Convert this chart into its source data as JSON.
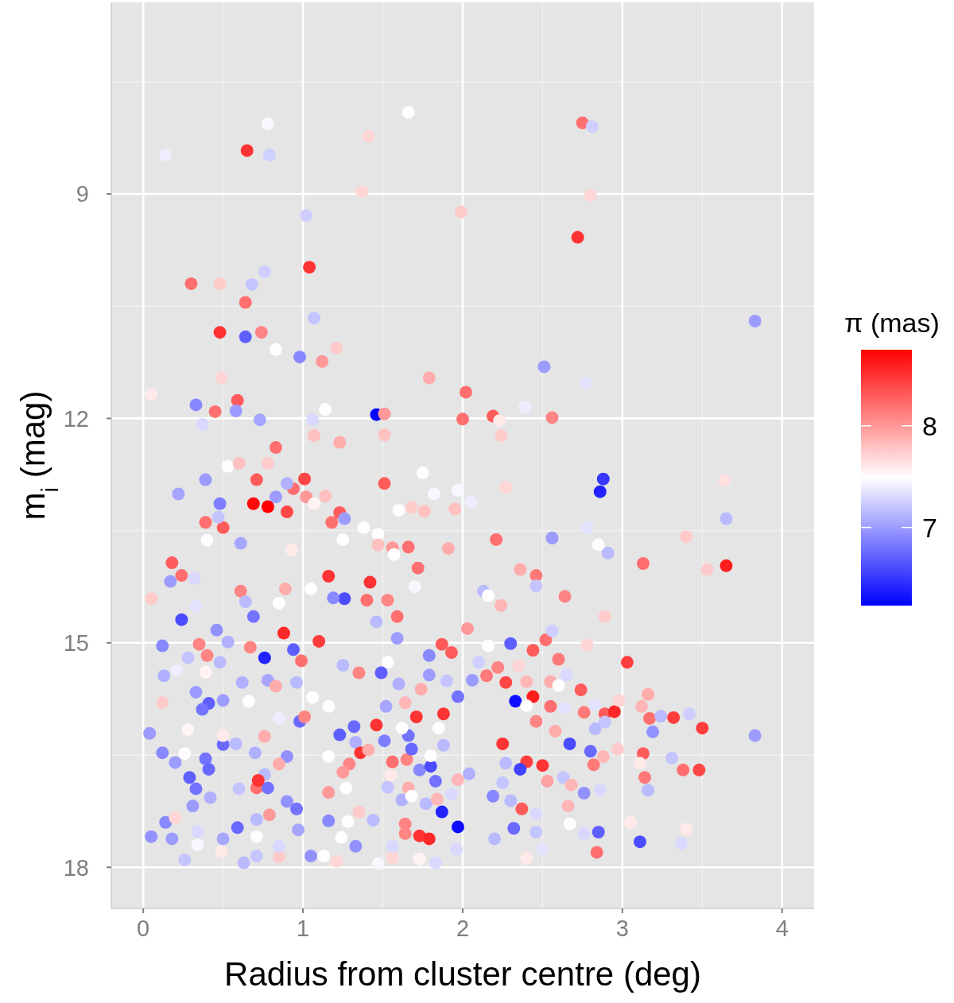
{
  "chart_data": {
    "type": "scatter",
    "xlabel": "Radius from cluster centre (deg)",
    "ylabel": "m$_{i}$ (mag)",
    "clabel": "π (mas)",
    "xlim": [
      -0.2,
      4.2
    ],
    "xticks": [
      0,
      1,
      2,
      3,
      4
    ],
    "ylim": [
      18.55,
      6.44
    ],
    "yticks": [
      9,
      12,
      15,
      18
    ],
    "clim": [
      6.23,
      8.75
    ],
    "cticks": [
      7,
      8
    ],
    "grid": true,
    "marker": "circle",
    "x": [
      0.14,
      0.65,
      0.78,
      0.79,
      1.66,
      1.41,
      1.37,
      1.02,
      1.99,
      2.75,
      2.81,
      2.8,
      2.72,
      1.04,
      0.3,
      0.48,
      0.68,
      0.76,
      0.64,
      1.07,
      0.48,
      0.64,
      0.74,
      0.83,
      0.98,
      1.12,
      1.21,
      3.83,
      2.51,
      0.05,
      0.49,
      0.33,
      0.45,
      0.59,
      0.58,
      1.79,
      2.02,
      1.46,
      1.14,
      1.51,
      2.19,
      2.23,
      2.39,
      2.56,
      2.77,
      0.73,
      1.06,
      2.0,
      0.37,
      1.07,
      1.23,
      1.51,
      0.83,
      0.53,
      0.6,
      0.78,
      0.39,
      0.71,
      1.01,
      1.51,
      1.75,
      0.22,
      0.48,
      0.69,
      0.78,
      0.83,
      0.9,
      0.94,
      0.9,
      1.02,
      1.07,
      1.14,
      1.23,
      1.26,
      1.18,
      1.6,
      1.68,
      1.76,
      1.82,
      1.97,
      2.05,
      1.95,
      0.39,
      0.5,
      0.47,
      0.4,
      0.61,
      0.93,
      1.38,
      1.47,
      1.25,
      1.47,
      1.56,
      1.66,
      1.91,
      1.57,
      1.72,
      0.18,
      0.24,
      0.17,
      0.32,
      1.16,
      1.42,
      0.61,
      0.89,
      1.05,
      1.26,
      1.19,
      1.4,
      1.53,
      1.7,
      0.05,
      0.24,
      0.33,
      0.69,
      0.64,
      0.85,
      0.88,
      1.1,
      0.46,
      0.53,
      1.59,
      1.59,
      1.46,
      2.03,
      1.87,
      2.24,
      2.88,
      2.86,
      3.64,
      3.65,
      2.27,
      2.21,
      2.56,
      2.78,
      2.85,
      2.91,
      3.4,
      3.13,
      3.53,
      3.65,
      2.36,
      2.46,
      2.46,
      2.13,
      2.16,
      2.24,
      2.64,
      2.89,
      2.3,
      2.16,
      2.52,
      2.44,
      2.56,
      0.12,
      0.35,
      0.67,
      0.94,
      0.76,
      0.99,
      0.4,
      0.28,
      0.13,
      0.21,
      0.48,
      0.39,
      0.33,
      0.12,
      0.41,
      0.37,
      0.5,
      0.66,
      0.62,
      0.78,
      0.83,
      0.96,
      1.06,
      1.16,
      1.25,
      1.35,
      1.53,
      1.49,
      1.6,
      1.79,
      1.79,
      1.93,
      1.9,
      1.64,
      1.52,
      1.74,
      1.97,
      0.04,
      0.12,
      0.2,
      0.26,
      0.28,
      0.5,
      0.5,
      0.58,
      0.39,
      0.41,
      0.29,
      0.33,
      0.42,
      0.31,
      0.7,
      0.76,
      0.85,
      0.9,
      0.98,
      1.01,
      0.85,
      0.76,
      0.71,
      0.78,
      0.72,
      0.6,
      0.9,
      0.96,
      0.79,
      0.71,
      0.97,
      0.59,
      0.71,
      0.14,
      0.05,
      0.18,
      0.2,
      0.34,
      0.34,
      0.26,
      0.49,
      0.5,
      0.63,
      0.71,
      0.85,
      0.85,
      1.05,
      1.13,
      1.21,
      1.47,
      1.33,
      1.24,
      1.44,
      1.28,
      1.16,
      1.35,
      1.16,
      1.27,
      1.23,
      1.32,
      1.33,
      1.36,
      1.46,
      1.51,
      1.29,
      1.16,
      1.25,
      1.41,
      1.53,
      1.55,
      1.56,
      1.65,
      1.68,
      1.66,
      1.71,
      1.62,
      1.73,
      1.8,
      1.83,
      1.8,
      1.88,
      1.88,
      1.85,
      2.04,
      1.97,
      1.66,
      1.62,
      1.68,
      1.77,
      1.84,
      1.87,
      1.97,
      1.93,
      1.64,
      1.64,
      1.73,
      1.79,
      1.73,
      1.83,
      1.96,
      1.56,
      1.56,
      2.6,
      3.03,
      2.78,
      2.1,
      2.22,
      2.15,
      2.27,
      2.06,
      2.35,
      2.65,
      2.4,
      2.55,
      2.6,
      2.74,
      2.33,
      2.44,
      2.4,
      2.55,
      2.64,
      2.76,
      2.83,
      2.89,
      2.95,
      2.89,
      2.83,
      2.98,
      3.16,
      3.12,
      3.17,
      3.24,
      3.32,
      3.42,
      3.5,
      3.83,
      3.19,
      2.46,
      2.58,
      2.25,
      2.67,
      2.8,
      2.88,
      2.97,
      3.13,
      3.11,
      3.31,
      3.38,
      3.48,
      3.14,
      3.16,
      2.4,
      2.5,
      2.36,
      2.27,
      2.82,
      2.53,
      2.25,
      2.63,
      2.76,
      2.68,
      2.19,
      2.3,
      2.37,
      2.66,
      2.86,
      2.46,
      2.32,
      2.46,
      2.2,
      2.67,
      2.85,
      2.76,
      2.84,
      2.5,
      2.4,
      3.05,
      3.11,
      3.4,
      3.37
    ],
    "values": [
      8.48,
      8.42,
      8.06,
      8.48,
      7.91,
      8.23,
      8.97,
      9.29,
      9.24,
      8.05,
      8.1,
      9.02,
      9.58,
      9.98,
      10.2,
      10.2,
      10.21,
      10.04,
      10.45,
      10.66,
      10.85,
      10.91,
      10.85,
      11.08,
      11.18,
      11.24,
      11.06,
      10.7,
      11.31,
      11.68,
      11.46,
      11.82,
      11.91,
      11.76,
      11.9,
      11.46,
      11.65,
      11.95,
      11.88,
      11.94,
      11.97,
      12.03,
      11.85,
      11.99,
      11.53,
      12.02,
      12.02,
      12.01,
      12.08,
      12.23,
      12.32,
      12.22,
      12.39,
      12.64,
      12.6,
      12.6,
      12.82,
      12.82,
      12.81,
      12.87,
      12.73,
      13.01,
      13.14,
      13.14,
      13.18,
      13.05,
      13.25,
      12.94,
      12.87,
      13.05,
      13.14,
      13.04,
      13.26,
      13.34,
      13.39,
      13.23,
      13.19,
      13.24,
      13.01,
      12.96,
      13.12,
      13.21,
      13.39,
      13.46,
      13.32,
      13.63,
      13.67,
      13.76,
      13.46,
      13.55,
      13.62,
      13.69,
      13.73,
      13.72,
      13.74,
      13.82,
      14.0,
      13.93,
      14.1,
      14.18,
      14.14,
      14.11,
      14.19,
      14.31,
      14.28,
      14.28,
      14.41,
      14.4,
      14.43,
      14.43,
      14.25,
      14.41,
      14.69,
      14.51,
      14.65,
      14.45,
      14.47,
      14.87,
      14.98,
      14.83,
      14.99,
      14.65,
      14.94,
      14.72,
      14.81,
      15.02,
      12.23,
      12.81,
      12.98,
      12.83,
      13.34,
      12.92,
      13.62,
      13.6,
      13.46,
      13.69,
      13.8,
      13.58,
      13.94,
      14.02,
      13.97,
      14.02,
      14.1,
      14.24,
      14.31,
      14.37,
      14.5,
      14.38,
      14.65,
      15.01,
      15.04,
      14.96,
      15.1,
      14.84,
      15.04,
      15.02,
      15.06,
      15.09,
      15.2,
      15.24,
      15.17,
      15.2,
      15.44,
      15.37,
      15.26,
      15.39,
      15.66,
      15.8,
      15.81,
      15.89,
      15.77,
      15.78,
      15.53,
      15.5,
      15.58,
      15.53,
      15.73,
      15.85,
      15.3,
      15.4,
      15.26,
      15.4,
      15.55,
      15.17,
      15.43,
      15.13,
      15.51,
      15.8,
      15.85,
      15.62,
      15.72,
      16.21,
      16.47,
      16.6,
      16.48,
      16.16,
      16.36,
      16.24,
      16.35,
      16.55,
      16.69,
      16.8,
      16.95,
      17.07,
      17.18,
      16.47,
      16.25,
      16.01,
      16.52,
      16.05,
      15.99,
      16.62,
      16.76,
      16.94,
      16.94,
      16.84,
      16.95,
      17.12,
      17.22,
      17.3,
      17.36,
      17.5,
      17.47,
      17.59,
      17.4,
      17.59,
      17.62,
      17.34,
      17.52,
      17.7,
      17.9,
      17.79,
      17.62,
      17.94,
      17.85,
      17.86,
      17.72,
      17.85,
      17.85,
      17.92,
      17.95,
      17.72,
      17.6,
      17.37,
      17.39,
      17.38,
      17.26,
      17.0,
      16.94,
      16.23,
      16.12,
      16.33,
      16.47,
      16.1,
      16.31,
      16.62,
      16.52,
      16.73,
      16.43,
      16.93,
      16.77,
      16.59,
      16.56,
      16.42,
      16.24,
      15.99,
      16.14,
      16.7,
      16.65,
      16.85,
      16.51,
      16.37,
      15.95,
      16.14,
      16.75,
      16.83,
      16.94,
      17.1,
      17.05,
      17.15,
      17.09,
      17.26,
      17.46,
      17.02,
      17.42,
      17.55,
      17.58,
      17.62,
      17.89,
      17.94,
      17.76,
      17.87,
      17.72,
      15.22,
      15.26,
      15.03,
      15.26,
      15.33,
      15.44,
      15.53,
      15.5,
      15.31,
      15.43,
      15.52,
      15.52,
      15.57,
      15.63,
      15.78,
      15.72,
      15.84,
      15.85,
      15.87,
      15.93,
      15.83,
      15.95,
      15.92,
      16.06,
      16.15,
      15.77,
      15.69,
      15.85,
      16.01,
      15.98,
      16.0,
      15.95,
      16.14,
      16.24,
      16.19,
      16.05,
      16.18,
      16.35,
      16.35,
      16.45,
      16.52,
      16.42,
      16.48,
      16.61,
      16.54,
      16.7,
      16.7,
      16.8,
      16.97,
      16.59,
      16.64,
      16.69,
      16.61,
      16.63,
      16.85,
      16.87,
      16.8,
      17.01,
      16.9,
      17.05,
      17.11,
      17.22,
      17.18,
      16.97,
      17.29,
      17.48,
      17.53,
      17.62,
      17.42,
      17.53,
      17.55,
      17.8,
      17.76,
      17.88,
      17.4,
      17.66,
      17.49,
      17.68
    ],
    "cvalues": [
      7.4,
      8.5,
      7.45,
      7.25,
      7.5,
      7.7,
      7.7,
      7.25,
      7.75,
      8.2,
      7.25,
      7.7,
      8.5,
      8.5,
      8.2,
      7.75,
      7.2,
      7.25,
      8.2,
      7.2,
      8.5,
      6.7,
      8.1,
      7.5,
      6.9,
      8.0,
      7.75,
      7.0,
      7.0,
      7.6,
      7.7,
      6.9,
      8.2,
      8.3,
      7.0,
      7.9,
      8.2,
      6.25,
      7.5,
      8.0,
      8.3,
      7.6,
      7.4,
      8.1,
      7.35,
      7.05,
      7.3,
      8.2,
      7.3,
      7.8,
      7.9,
      7.8,
      8.2,
      7.5,
      7.8,
      7.75,
      7.0,
      8.3,
      8.4,
      8.3,
      7.5,
      7.05,
      6.85,
      8.7,
      8.75,
      7.0,
      8.4,
      8.2,
      7.1,
      8.0,
      7.55,
      7.8,
      8.3,
      7.0,
      8.2,
      7.5,
      7.75,
      7.8,
      7.45,
      7.45,
      7.4,
      7.8,
      8.2,
      8.3,
      7.2,
      7.5,
      7.05,
      7.6,
      7.5,
      7.5,
      7.5,
      7.8,
      8.0,
      8.2,
      7.9,
      7.5,
      8.2,
      8.3,
      8.2,
      7.0,
      7.3,
      8.5,
      8.5,
      8.1,
      7.9,
      7.5,
      6.6,
      6.9,
      8.2,
      8.1,
      7.45,
      7.75,
      6.6,
      7.35,
      6.8,
      7.15,
      7.5,
      8.55,
      8.45,
      6.95,
      7.1,
      8.2,
      7.0,
      7.15,
      8.0,
      8.3,
      7.75,
      6.5,
      6.4,
      7.65,
      7.15,
      7.7,
      8.2,
      7.0,
      7.35,
      7.5,
      7.15,
      7.75,
      8.2,
      7.75,
      8.6,
      7.9,
      8.15,
      7.2,
      7.15,
      7.5,
      7.85,
      8.1,
      7.75,
      6.7,
      7.5,
      8.2,
      8.3,
      7.25,
      6.9,
      8.1,
      8.1,
      6.7,
      6.4,
      8.2,
      8.1,
      7.2,
      7.1,
      7.4,
      7.15,
      7.55,
      7.0,
      7.75,
      6.7,
      6.8,
      7.0,
      7.5,
      7.1,
      7.05,
      7.9,
      7.15,
      7.5,
      7.5,
      7.15,
      8.1,
      7.5,
      6.7,
      7.1,
      6.9,
      7.0,
      8.3,
      7.2,
      7.85,
      7.05,
      7.9,
      6.8,
      7.0,
      6.9,
      7.0,
      7.5,
      7.55,
      6.75,
      7.6,
      7.15,
      6.8,
      6.75,
      6.7,
      6.8,
      7.1,
      7.0,
      7.1,
      7.9,
      7.4,
      6.95,
      6.75,
      8.1,
      7.9,
      7.15,
      8.2,
      6.8,
      8.5,
      7.2,
      6.95,
      6.8,
      8.0,
      7.15,
      7.05,
      6.75,
      7.5,
      6.9,
      6.95,
      7.0,
      7.7,
      7.3,
      7.45,
      7.2,
      7.6,
      7.05,
      7.15,
      7.2,
      7.75,
      7.3,
      6.95,
      7.5,
      7.7,
      7.45,
      6.95,
      7.5,
      7.15,
      7.5,
      6.9,
      7.75,
      8.0,
      7.5,
      6.7,
      6.75,
      7.1,
      8.5,
      8.5,
      6.85,
      8.1,
      7.5,
      8.0,
      7.9,
      7.2,
      7.6,
      8.2,
      8.1,
      6.75,
      6.8,
      8.5,
      7.5,
      6.9,
      6.6,
      6.8,
      7.5,
      7.15,
      8.5,
      7.5,
      7.1,
      7.85,
      7.9,
      7.1,
      7.5,
      7.15,
      7.85,
      6.4,
      6.3,
      7.3,
      8.1,
      8.1,
      8.5,
      8.55,
      7.55,
      7.3,
      7.3,
      7.7,
      7.3,
      8.15,
      8.45,
      7.7,
      7.25,
      8.1,
      8.15,
      8.4,
      7.0,
      7.7,
      7.3,
      7.85,
      7.9,
      7.5,
      8.3,
      6.3,
      8.6,
      7.5,
      8.2,
      7.35,
      8.15,
      7.35,
      8.3,
      8.55,
      7.2,
      7.15,
      7.7,
      7.9,
      7.85,
      8.2,
      7.15,
      8.45,
      7.25,
      8.45,
      7.0,
      6.95,
      8.1,
      7.9,
      8.5,
      6.6,
      6.75,
      7.85,
      7.75,
      8.3,
      7.6,
      7.2,
      8.2,
      8.4,
      8.15,
      7.15,
      8.45,
      8.5,
      6.55,
      7.15,
      8.15,
      7.95,
      7.2,
      7.2,
      6.95,
      7.85,
      6.9,
      7.15,
      8.3,
      7.85,
      7.3,
      7.3,
      6.75,
      7.2,
      7.15,
      7.5,
      6.7,
      7.3,
      8.2,
      7.35,
      7.6,
      7.6,
      6.6,
      7.6,
      7.3
    ]
  }
}
